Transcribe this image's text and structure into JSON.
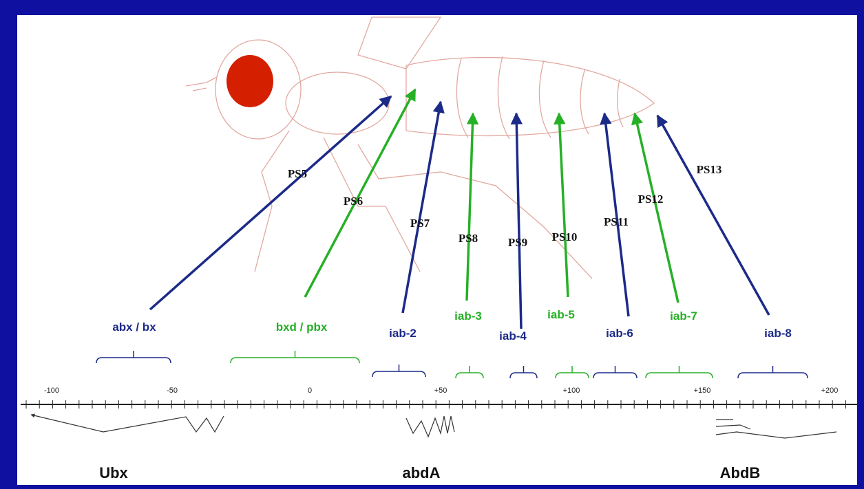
{
  "regions": [
    {
      "label": "abx / bx",
      "segment": "PS5",
      "color": "#1c2a88"
    },
    {
      "label": "bxd / pbx",
      "segment": "PS6",
      "color": "#26b026"
    },
    {
      "label": "iab-2",
      "segment": "PS7",
      "color": "#1c2a88"
    },
    {
      "label": "iab-3",
      "segment": "PS8",
      "color": "#26b026"
    },
    {
      "label": "iab-4",
      "segment": "PS9",
      "color": "#1c2a88"
    },
    {
      "label": "iab-5",
      "segment": "PS10",
      "color": "#26b026"
    },
    {
      "label": "iab-6",
      "segment": "PS11",
      "color": "#1c2a88"
    },
    {
      "label": "iab-7",
      "segment": "PS12",
      "color": "#26b026"
    },
    {
      "label": "iab-8",
      "segment": "PS13",
      "color": "#1c2a88"
    }
  ],
  "scale_labels": [
    "-100",
    "-50",
    "0",
    "+50",
    "+100",
    "+150",
    "+200"
  ],
  "genes": [
    "Ubx",
    "abdA",
    "AbdB"
  ]
}
